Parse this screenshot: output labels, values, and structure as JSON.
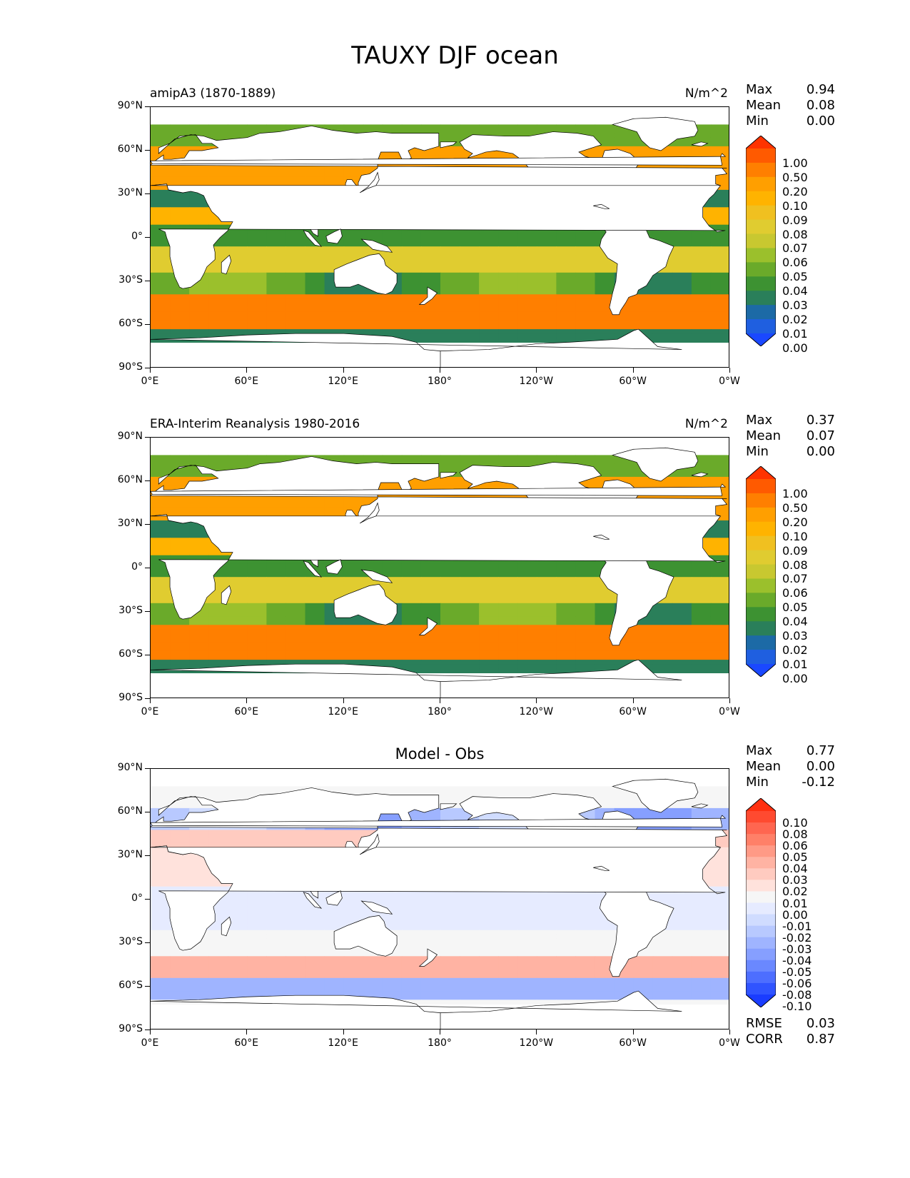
{
  "title": "TAUXY DJF ocean",
  "panels": [
    {
      "id": "model",
      "left_title": "amipA3 (1870-1889)",
      "center_title": "",
      "units": "N/m^2",
      "stats": [
        {
          "label": "Max",
          "value": "0.94"
        },
        {
          "label": "Mean",
          "value": "0.08"
        },
        {
          "label": "Min",
          "value": "0.00"
        }
      ],
      "colorbar_levels": [
        "1.00",
        "0.50",
        "0.20",
        "0.10",
        "0.09",
        "0.08",
        "0.07",
        "0.06",
        "0.05",
        "0.04",
        "0.03",
        "0.02",
        "0.01",
        "0.00"
      ],
      "colorbar_colors": [
        "#ff3300",
        "#ff5a00",
        "#ff7f00",
        "#ff9f00",
        "#ffb300",
        "#f0c020",
        "#e0cc30",
        "#c8c830",
        "#9bc02c",
        "#6aaa2a",
        "#3d9232",
        "#2a7f5a",
        "#1c6aa6",
        "#1f5fe0",
        "#1a48ff"
      ]
    },
    {
      "id": "obs",
      "left_title": "ERA-Interim Reanalysis 1980-2016",
      "center_title": "",
      "units": "N/m^2",
      "stats": [
        {
          "label": "Max",
          "value": "0.37"
        },
        {
          "label": "Mean",
          "value": "0.07"
        },
        {
          "label": "Min",
          "value": "0.00"
        }
      ],
      "colorbar_levels": [
        "1.00",
        "0.50",
        "0.20",
        "0.10",
        "0.09",
        "0.08",
        "0.07",
        "0.06",
        "0.05",
        "0.04",
        "0.03",
        "0.02",
        "0.01",
        "0.00"
      ],
      "colorbar_colors": [
        "#ff3300",
        "#ff5a00",
        "#ff7f00",
        "#ff9f00",
        "#ffb300",
        "#f0c020",
        "#e0cc30",
        "#c8c830",
        "#9bc02c",
        "#6aaa2a",
        "#3d9232",
        "#2a7f5a",
        "#1c6aa6",
        "#1f5fe0",
        "#1a48ff"
      ]
    },
    {
      "id": "diff",
      "left_title": "",
      "center_title": "Model - Obs",
      "units": "",
      "stats": [
        {
          "label": "Max",
          "value": "0.77"
        },
        {
          "label": "Mean",
          "value": "0.00"
        },
        {
          "label": "Min",
          "value": "-0.12"
        }
      ],
      "colorbar_levels": [
        "0.10",
        "0.08",
        "0.06",
        "0.05",
        "0.04",
        "0.03",
        "0.02",
        "0.01",
        "0.00",
        "-0.01",
        "-0.02",
        "-0.03",
        "-0.04",
        "-0.05",
        "-0.06",
        "-0.08",
        "-0.10"
      ],
      "colorbar_colors": [
        "#ff3010",
        "#ff4a30",
        "#ff6650",
        "#ff8068",
        "#ff9a86",
        "#ffb3a3",
        "#ffcbc0",
        "#ffe2dc",
        "#f6f6f6",
        "#e6ebff",
        "#d0dcff",
        "#b8c9ff",
        "#9fb4ff",
        "#869fff",
        "#6a88ff",
        "#4d6eff",
        "#3054ff",
        "#1a3cff"
      ],
      "bottom_stats": [
        {
          "label": "RMSE",
          "value": "0.03"
        },
        {
          "label": "CORR",
          "value": "0.87"
        }
      ]
    }
  ],
  "axes": {
    "lat_labels": [
      "90°N",
      "60°N",
      "30°N",
      "0°",
      "30°S",
      "60°S",
      "90°S"
    ],
    "lon_labels": [
      "0°E",
      "60°E",
      "120°E",
      "180°",
      "120°W",
      "60°W",
      "0°W"
    ]
  }
}
